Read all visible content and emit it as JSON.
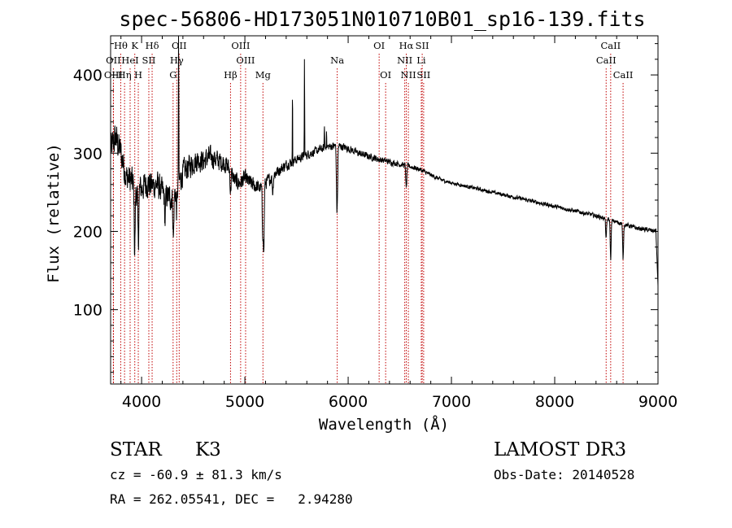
{
  "chart_data": {
    "type": "line",
    "title": "spec-56806-HD173051N010710B01_sp16-139.fits",
    "xlabel": "Wavelength (Å)",
    "ylabel": "Flux (relative)",
    "xlim": [
      3700,
      9000
    ],
    "ylim": [
      5,
      450
    ],
    "xticks": [
      4000,
      5000,
      6000,
      7000,
      8000,
      9000
    ],
    "yticks": [
      100,
      200,
      300,
      400
    ],
    "continuum": [
      [
        3700,
        305
      ],
      [
        3750,
        320
      ],
      [
        3800,
        300
      ],
      [
        3850,
        270
      ],
      [
        3900,
        265
      ],
      [
        3950,
        250
      ],
      [
        4000,
        255
      ],
      [
        4050,
        262
      ],
      [
        4100,
        258
      ],
      [
        4150,
        260
      ],
      [
        4200,
        250
      ],
      [
        4250,
        245
      ],
      [
        4300,
        243
      ],
      [
        4350,
        258
      ],
      [
        4400,
        275
      ],
      [
        4450,
        282
      ],
      [
        4500,
        288
      ],
      [
        4550,
        292
      ],
      [
        4600,
        290
      ],
      [
        4650,
        295
      ],
      [
        4700,
        293
      ],
      [
        4750,
        290
      ],
      [
        4800,
        288
      ],
      [
        4850,
        280
      ],
      [
        4900,
        265
      ],
      [
        4950,
        262
      ],
      [
        5000,
        268
      ],
      [
        5050,
        262
      ],
      [
        5100,
        258
      ],
      [
        5150,
        255
      ],
      [
        5200,
        262
      ],
      [
        5250,
        268
      ],
      [
        5300,
        275
      ],
      [
        5400,
        285
      ],
      [
        5500,
        292
      ],
      [
        5600,
        298
      ],
      [
        5700,
        303
      ],
      [
        5800,
        308
      ],
      [
        5900,
        310
      ],
      [
        6000,
        306
      ],
      [
        6100,
        300
      ],
      [
        6200,
        296
      ],
      [
        6300,
        292
      ],
      [
        6400,
        289
      ],
      [
        6500,
        286
      ],
      [
        6600,
        283
      ],
      [
        6700,
        279
      ],
      [
        6800,
        272
      ],
      [
        6900,
        266
      ],
      [
        7000,
        262
      ],
      [
        7200,
        256
      ],
      [
        7400,
        250
      ],
      [
        7600,
        244
      ],
      [
        7800,
        238
      ],
      [
        8000,
        232
      ],
      [
        8200,
        226
      ],
      [
        8400,
        220
      ],
      [
        8600,
        212
      ],
      [
        8800,
        204
      ],
      [
        9000,
        200
      ]
    ],
    "absorption_features": [
      [
        3933,
        80
      ],
      [
        3968,
        70
      ],
      [
        4227,
        35
      ],
      [
        4308,
        55
      ],
      [
        4340,
        30
      ],
      [
        4861,
        25
      ],
      [
        5172,
        55
      ],
      [
        5183,
        85
      ],
      [
        5270,
        20
      ],
      [
        5890,
        60
      ],
      [
        5896,
        45
      ],
      [
        6563,
        30
      ],
      [
        8498,
        25
      ],
      [
        8542,
        50
      ],
      [
        8662,
        45
      ]
    ],
    "emission_spikes": [
      [
        4358,
        225
      ],
      [
        5461,
        90
      ],
      [
        5577,
        125
      ],
      [
        5770,
        30
      ],
      [
        5790,
        25
      ]
    ],
    "noise_amplitude": [
      [
        3700,
        28
      ],
      [
        4400,
        22
      ],
      [
        5000,
        14
      ],
      [
        5500,
        8
      ],
      [
        6500,
        5
      ],
      [
        7000,
        3
      ],
      [
        9000,
        4
      ]
    ],
    "line_markers": [
      {
        "label": "Hθ",
        "x": 3798,
        "row": 0
      },
      {
        "label": "OII",
        "x": 3727,
        "row": 1
      },
      {
        "label": "HeI",
        "x": 3889,
        "row": 1
      },
      {
        "label": "OIII",
        "x": 3727,
        "row": 2
      },
      {
        "label": "Hη",
        "x": 3835,
        "row": 2
      },
      {
        "label": "K",
        "x": 3934,
        "row": 0
      },
      {
        "label": "H",
        "x": 3968,
        "row": 2
      },
      {
        "label": "SII",
        "x": 4070,
        "row": 1
      },
      {
        "label": "Hδ",
        "x": 4102,
        "row": 0
      },
      {
        "label": "OII",
        "x": 4364,
        "row": 0
      },
      {
        "label": "Hγ",
        "x": 4340,
        "row": 1
      },
      {
        "label": "G",
        "x": 4305,
        "row": 2
      },
      {
        "label": "Hβ",
        "x": 4861,
        "row": 2
      },
      {
        "label": "OIII",
        "x": 4959,
        "row": 0
      },
      {
        "label": "OIII",
        "x": 5007,
        "row": 1
      },
      {
        "label": "Mg",
        "x": 5175,
        "row": 2
      },
      {
        "label": "Na",
        "x": 5894,
        "row": 1
      },
      {
        "label": "OI",
        "x": 6300,
        "row": 0
      },
      {
        "label": "OI",
        "x": 6363,
        "row": 2
      },
      {
        "label": "Hα",
        "x": 6563,
        "row": 0
      },
      {
        "label": "NII",
        "x": 6548,
        "row": 1
      },
      {
        "label": "NII",
        "x": 6583,
        "row": 2
      },
      {
        "label": "SII",
        "x": 6717,
        "row": 0
      },
      {
        "label": "Li",
        "x": 6708,
        "row": 1
      },
      {
        "label": "SII",
        "x": 6731,
        "row": 2
      },
      {
        "label": "CaII",
        "x": 8542,
        "row": 0
      },
      {
        "label": "CaII",
        "x": 8498,
        "row": 1
      },
      {
        "label": "CaII",
        "x": 8662,
        "row": 2
      }
    ]
  },
  "info": {
    "object_class": "STAR",
    "subclass": "K3",
    "survey": "LAMOST DR3",
    "redshift": "cz = -60.9 ± 81.3 km/s",
    "obs_date": "Obs-Date: 20140528",
    "coords": "RA = 262.05541, DEC =   2.94280"
  },
  "colors": {
    "spectrum": "#000000",
    "marker_line": "#c00000",
    "axis": "#000000"
  }
}
